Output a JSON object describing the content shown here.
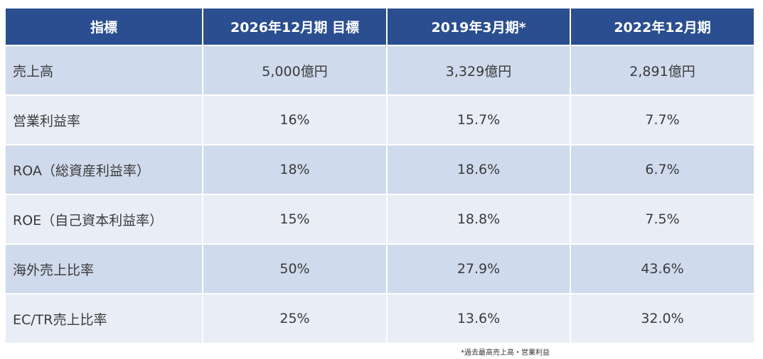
{
  "table": {
    "headers": [
      "指標",
      "2026年12月期 目標",
      "2019年3月期*",
      "2022年12月期"
    ],
    "rows": [
      {
        "label": "売上高",
        "values": [
          "5,000億円",
          "3,329億円",
          "2,891億円"
        ]
      },
      {
        "label": "営業利益率",
        "values": [
          "16%",
          "15.7%",
          "7.7%"
        ]
      },
      {
        "label": "ROA（総資産利益率）",
        "values": [
          "18%",
          "18.6%",
          "6.7%"
        ]
      },
      {
        "label": "ROE（自己資本利益率）",
        "values": [
          "15%",
          "18.8%",
          "7.5%"
        ]
      },
      {
        "label": "海外売上比率",
        "values": [
          "50%",
          "27.9%",
          "43.6%"
        ]
      },
      {
        "label": "EC/TR売上比率",
        "values": [
          "25%",
          "13.6%",
          "32.0%"
        ]
      }
    ]
  },
  "footnote": "*過去最高売上高・営業利益",
  "colors": {
    "header_bg": "#2a4e8f",
    "row_dark": "#cfdaec",
    "row_light": "#e9edf5"
  }
}
